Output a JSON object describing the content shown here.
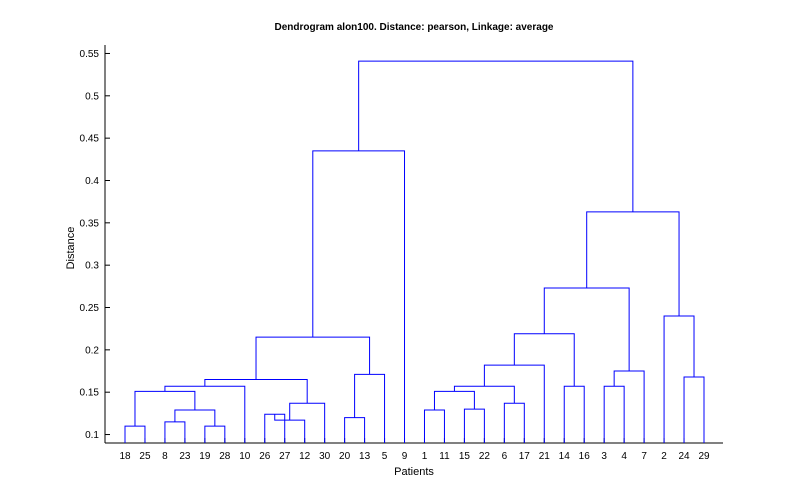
{
  "chart_data": {
    "type": "dendrogram",
    "title": "Dendrogram alon100.  Distance: pearson, Linkage: average",
    "xlabel": "Patients",
    "ylabel": "Distance",
    "ylim": [
      0.09,
      0.56
    ],
    "yticks": [
      "0.1",
      "0.15",
      "0.2",
      "0.25",
      "0.3",
      "0.35",
      "0.4",
      "0.45",
      "0.5",
      "0.55"
    ],
    "leaf_order": [
      "18",
      "25",
      "8",
      "23",
      "19",
      "28",
      "10",
      "26",
      "27",
      "12",
      "30",
      "20",
      "13",
      "5",
      "9",
      "1",
      "11",
      "15",
      "22",
      "6",
      "17",
      "21",
      "14",
      "16",
      "3",
      "4",
      "7",
      "2",
      "24",
      "29"
    ],
    "baseline": 0.09,
    "grid": false,
    "line_color": "#0000ff",
    "merges": [
      {
        "left": "18",
        "right": "25",
        "height": 0.11
      },
      {
        "left": "8",
        "right": "23",
        "height": 0.115
      },
      {
        "left": "19",
        "right": "28",
        "height": 0.11
      },
      {
        "left": "c1",
        "right": "c2",
        "height": 0.129
      },
      {
        "left": "c0",
        "right": "c3",
        "height": 0.151
      },
      {
        "left": "c4",
        "right": "10",
        "height": 0.157
      },
      {
        "left": "26",
        "right": "27",
        "height": 0.124
      },
      {
        "left": "c6",
        "right": "12",
        "height": 0.117
      },
      {
        "left": "c7",
        "right": "30",
        "height": 0.137
      },
      {
        "left": "c5",
        "right": "c8",
        "height": 0.165
      },
      {
        "left": "20",
        "right": "13",
        "height": 0.12
      },
      {
        "left": "c10",
        "right": "5",
        "height": 0.171
      },
      {
        "left": "c9",
        "right": "c11",
        "height": 0.215
      },
      {
        "left": "c12",
        "right": "9",
        "height": 0.435
      },
      {
        "left": "1",
        "right": "11",
        "height": 0.129
      },
      {
        "left": "15",
        "right": "22",
        "height": 0.13
      },
      {
        "left": "c14",
        "right": "c15",
        "height": 0.151
      },
      {
        "left": "6",
        "right": "17",
        "height": 0.137
      },
      {
        "left": "c16",
        "right": "c17",
        "height": 0.157
      },
      {
        "left": "c18",
        "right": "21",
        "height": 0.182
      },
      {
        "left": "14",
        "right": "16",
        "height": 0.157
      },
      {
        "left": "c19",
        "right": "c20",
        "height": 0.219
      },
      {
        "left": "3",
        "right": "4",
        "height": 0.157
      },
      {
        "left": "c22",
        "right": "7",
        "height": 0.175
      },
      {
        "left": "c21",
        "right": "c23",
        "height": 0.273
      },
      {
        "left": "24",
        "right": "29",
        "height": 0.168
      },
      {
        "left": "2",
        "right": "c25",
        "height": 0.24
      },
      {
        "left": "c24",
        "right": "c26",
        "height": 0.363
      },
      {
        "left": "c13",
        "right": "c27",
        "height": 0.541
      }
    ]
  }
}
